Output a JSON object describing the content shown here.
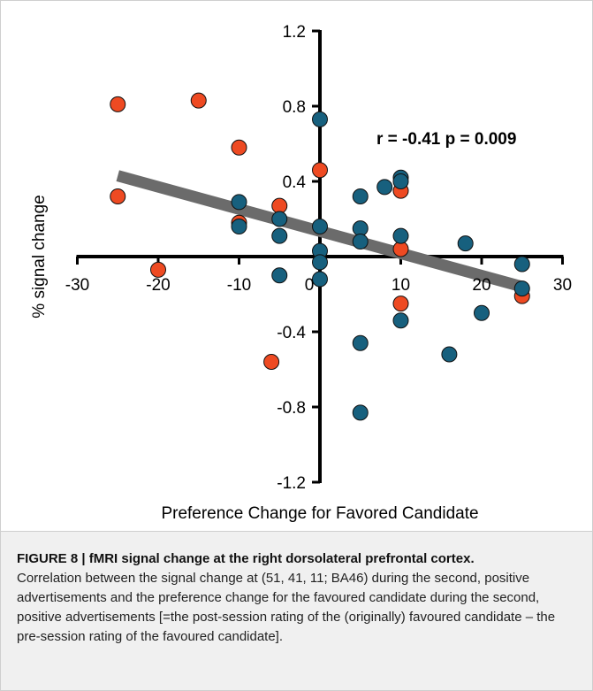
{
  "chart_data": {
    "type": "scatter",
    "xlabel": "Preference Change for Favored Candidate",
    "ylabel": "% signal change",
    "xlim": [
      -30,
      30
    ],
    "ylim": [
      -1.2,
      1.2
    ],
    "x_ticks": [
      "-30",
      "-20",
      "-10",
      "0",
      "10",
      "20",
      "30"
    ],
    "y_ticks": [
      "1.2",
      "0.8",
      "0.4",
      "-0.4",
      "-0.8",
      "-1.2"
    ],
    "annotation": "r = -0.41 p = 0.009",
    "grid": false,
    "trendline": {
      "x": [
        -25,
        25
      ],
      "y": [
        0.43,
        -0.16
      ],
      "color": "#6b6b6b"
    },
    "series": [
      {
        "color": "#ee4a22",
        "points": [
          {
            "x": -25,
            "y": 0.81
          },
          {
            "x": -15,
            "y": 0.83
          },
          {
            "x": -10,
            "y": 0.58
          },
          {
            "x": -25,
            "y": 0.32
          },
          {
            "x": -10,
            "y": 0.18
          },
          {
            "x": -5,
            "y": 0.27
          },
          {
            "x": 0,
            "y": 0.46
          },
          {
            "x": 10,
            "y": 0.35
          },
          {
            "x": 10,
            "y": 0.04
          },
          {
            "x": -20,
            "y": -0.07
          },
          {
            "x": -6,
            "y": -0.56
          },
          {
            "x": 10,
            "y": -0.25
          },
          {
            "x": 25,
            "y": -0.21
          }
        ]
      },
      {
        "color": "#17607e",
        "points": [
          {
            "x": 0,
            "y": 0.73
          },
          {
            "x": 10,
            "y": 0.42
          },
          {
            "x": 10,
            "y": 0.4
          },
          {
            "x": 8,
            "y": 0.37
          },
          {
            "x": 5,
            "y": 0.32
          },
          {
            "x": -10,
            "y": 0.29
          },
          {
            "x": -5,
            "y": 0.2
          },
          {
            "x": -10,
            "y": 0.16
          },
          {
            "x": 0,
            "y": 0.16
          },
          {
            "x": 5,
            "y": 0.15
          },
          {
            "x": -5,
            "y": 0.11
          },
          {
            "x": 10,
            "y": 0.11
          },
          {
            "x": 5,
            "y": 0.08
          },
          {
            "x": 18,
            "y": 0.07
          },
          {
            "x": 0,
            "y": 0.03
          },
          {
            "x": 0,
            "y": -0.03
          },
          {
            "x": 25,
            "y": -0.04
          },
          {
            "x": -5,
            "y": -0.1
          },
          {
            "x": 0,
            "y": -0.12
          },
          {
            "x": 25,
            "y": -0.17
          },
          {
            "x": 10,
            "y": -0.34
          },
          {
            "x": 20,
            "y": -0.3
          },
          {
            "x": 5,
            "y": -0.46
          },
          {
            "x": 16,
            "y": -0.52
          },
          {
            "x": 5,
            "y": -0.83
          }
        ]
      }
    ]
  },
  "caption": {
    "title": "FIGURE 8 | fMRI signal change at the right dorsolateral prefrontal cortex.",
    "body": "Correlation between the signal change at (51, 41, 11; BA46) during the second, positive advertisements and the preference change for the favoured candidate during the second, positive advertisements [=the post-session rating of the (originally) favoured candidate – the pre-session rating of the favoured candidate]."
  }
}
